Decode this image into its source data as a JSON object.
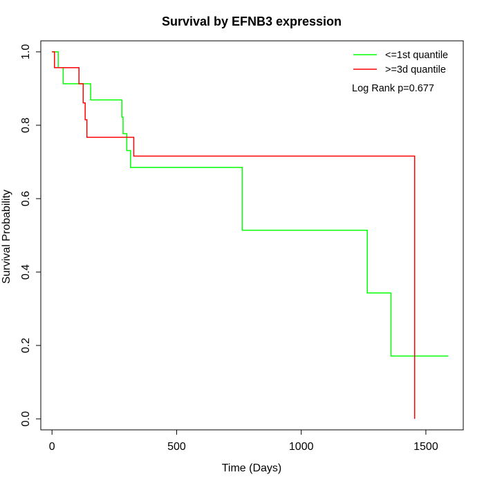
{
  "chart_data": {
    "type": "line",
    "title": "Survival by EFNB3 expression",
    "xlabel": "Time (Days)",
    "ylabel": "Survival Probability",
    "xlim": [
      -45,
      1650
    ],
    "ylim": [
      -0.03,
      1.03
    ],
    "x_ticks": [
      0,
      500,
      1000,
      1500
    ],
    "y_ticks": [
      0.0,
      0.2,
      0.4,
      0.6,
      0.8,
      1.0
    ],
    "y_tick_labels": [
      "0.0",
      "0.2",
      "0.4",
      "0.6",
      "0.8",
      "1.0"
    ],
    "grid": false,
    "legend_position": "top-right",
    "annotation": "Log Rank p=0.677",
    "series": [
      {
        "name": "<=1st quantile",
        "color": "#00ff00",
        "step_x": [
          0,
          25,
          45,
          155,
          280,
          285,
          300,
          315,
          763,
          1265,
          1360,
          1590
        ],
        "step_y": [
          1.0,
          0.957,
          0.913,
          0.869,
          0.822,
          0.777,
          0.731,
          0.685,
          0.514,
          0.343,
          0.171,
          0.171
        ]
      },
      {
        "name": ">=3d quantile",
        "color": "#ff0000",
        "step_x": [
          0,
          10,
          108,
          125,
          133,
          140,
          328,
          1455,
          1455
        ],
        "step_y": [
          1.0,
          0.957,
          0.913,
          0.861,
          0.815,
          0.767,
          0.716,
          0.716,
          0.0
        ]
      }
    ]
  }
}
